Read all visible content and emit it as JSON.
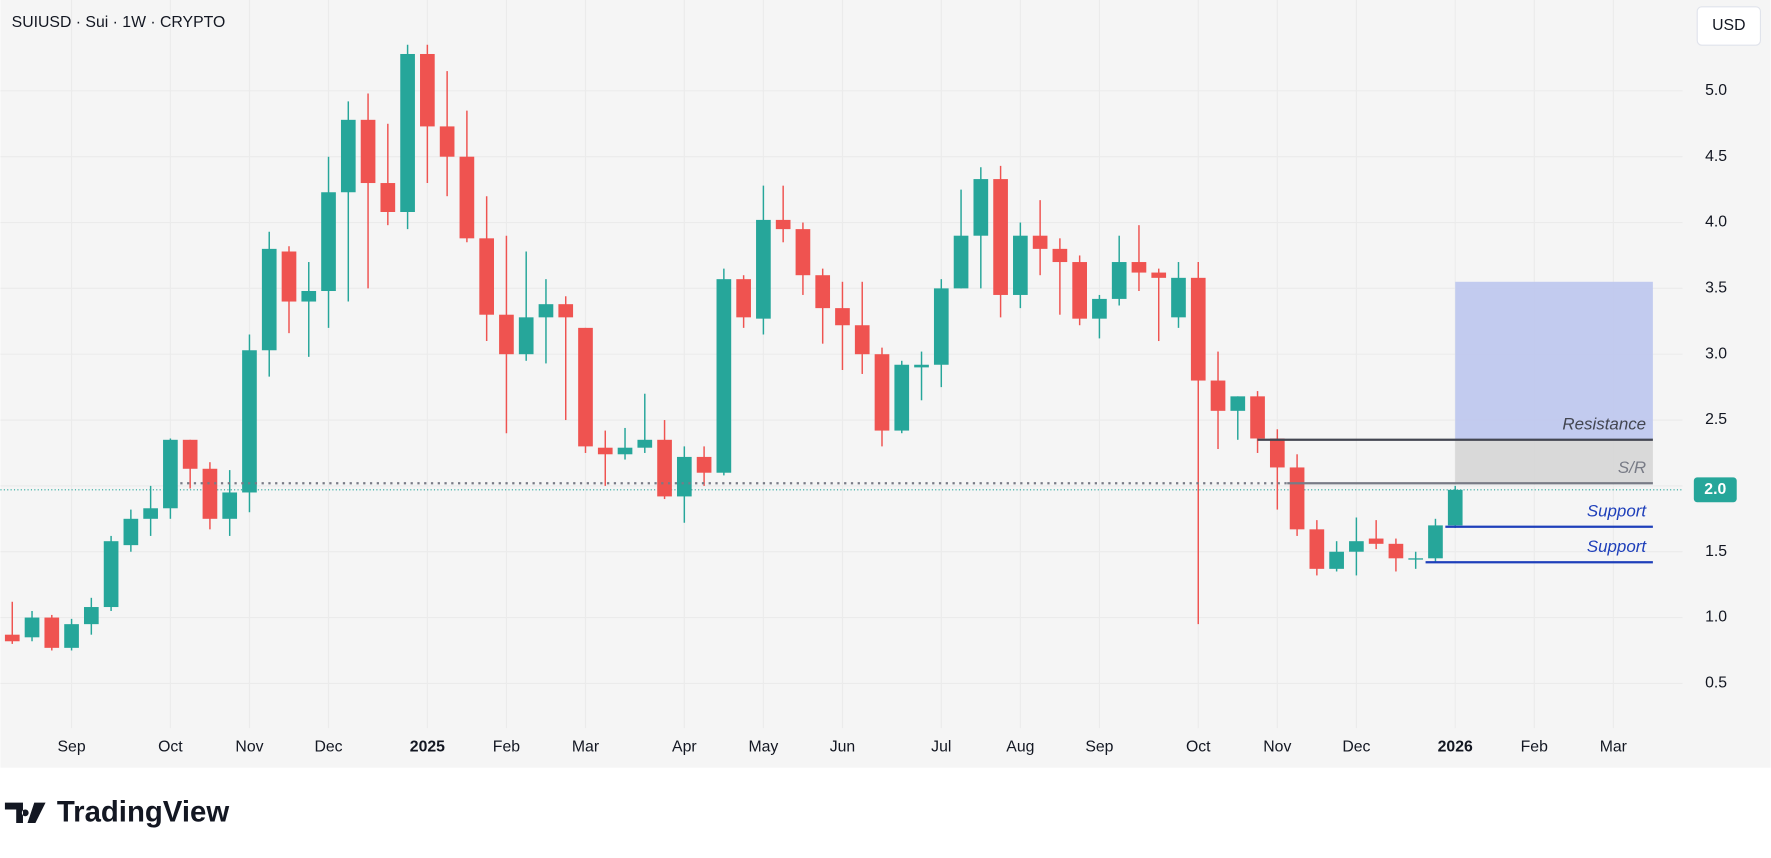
{
  "header": {
    "symbol": "SUIUSD · Sui · 1W · CRYPTO",
    "currency": "USD"
  },
  "footer": {
    "brand": "TradingView"
  },
  "chart_data": {
    "type": "candlestick",
    "up_color": "#26a69a",
    "down_color": "#ef5350",
    "open": [
      0.87,
      0.85,
      1.0,
      0.77,
      0.95,
      1.08,
      1.55,
      1.75,
      1.83,
      2.35,
      2.13,
      1.75,
      1.95,
      3.03,
      3.78,
      3.4,
      3.48,
      4.23,
      4.78,
      4.3,
      4.08,
      5.28,
      4.73,
      4.5,
      3.88,
      3.3,
      3.0,
      3.28,
      3.38,
      3.2,
      2.29,
      2.24,
      2.29,
      2.35,
      1.92,
      2.22,
      2.1,
      3.57,
      3.27,
      4.02,
      3.95,
      3.6,
      3.35,
      3.22,
      3.0,
      2.42,
      2.9,
      2.92,
      3.5,
      3.9,
      4.33,
      3.45,
      3.9,
      3.8,
      3.7,
      3.27,
      3.42,
      3.7,
      3.62,
      3.28,
      3.58,
      2.8,
      2.57,
      2.68,
      2.36,
      2.14,
      1.67,
      1.37,
      1.5,
      1.6,
      1.56,
      1.44,
      1.45,
      1.7
    ],
    "high": [
      1.12,
      1.05,
      1.02,
      0.99,
      1.15,
      1.62,
      1.82,
      2.0,
      2.36,
      2.35,
      2.18,
      2.12,
      3.15,
      3.93,
      3.82,
      3.7,
      4.5,
      4.92,
      4.98,
      4.75,
      5.35,
      5.35,
      5.15,
      4.85,
      4.2,
      3.9,
      3.78,
      3.57,
      3.44,
      3.2,
      2.42,
      2.44,
      2.7,
      2.5,
      2.3,
      2.3,
      3.65,
      3.6,
      4.28,
      4.28,
      4.0,
      3.65,
      3.55,
      3.55,
      3.05,
      2.95,
      3.02,
      3.57,
      4.25,
      4.42,
      4.43,
      4.0,
      4.17,
      3.88,
      3.75,
      3.45,
      3.9,
      3.98,
      3.65,
      3.7,
      3.7,
      3.02,
      2.68,
      2.72,
      2.43,
      2.24,
      1.74,
      1.58,
      1.76,
      1.74,
      1.6,
      1.5,
      1.75,
      2.0
    ],
    "low": [
      0.8,
      0.82,
      0.75,
      0.75,
      0.87,
      1.05,
      1.5,
      1.62,
      1.75,
      1.98,
      1.67,
      1.62,
      1.8,
      2.83,
      3.16,
      2.98,
      3.2,
      3.4,
      3.5,
      3.98,
      3.95,
      4.3,
      4.2,
      3.85,
      3.1,
      2.4,
      2.95,
      2.93,
      2.5,
      2.25,
      2.0,
      2.2,
      2.25,
      1.9,
      1.72,
      2.0,
      2.08,
      3.2,
      3.15,
      3.85,
      3.45,
      3.08,
      2.88,
      2.85,
      2.3,
      2.4,
      2.65,
      2.75,
      3.5,
      3.5,
      3.28,
      3.35,
      3.6,
      3.3,
      3.22,
      3.12,
      3.37,
      3.48,
      3.1,
      3.2,
      0.95,
      2.28,
      2.35,
      2.25,
      1.82,
      1.62,
      1.32,
      1.35,
      1.32,
      1.52,
      1.35,
      1.37,
      1.42,
      1.68
    ],
    "close": [
      0.82,
      1.0,
      0.77,
      0.95,
      1.08,
      1.58,
      1.75,
      1.83,
      2.35,
      2.13,
      1.75,
      1.95,
      3.03,
      3.8,
      3.4,
      3.48,
      4.23,
      4.78,
      4.3,
      4.08,
      5.28,
      4.73,
      4.5,
      3.88,
      3.3,
      3.0,
      3.28,
      3.38,
      3.28,
      2.3,
      2.24,
      2.29,
      2.35,
      1.92,
      2.22,
      2.1,
      3.57,
      3.28,
      4.02,
      3.95,
      3.6,
      3.35,
      3.22,
      3.0,
      2.42,
      2.92,
      2.92,
      3.5,
      3.9,
      4.33,
      3.45,
      3.9,
      3.8,
      3.7,
      3.27,
      3.42,
      3.7,
      3.62,
      3.58,
      3.58,
      2.8,
      2.57,
      2.68,
      2.36,
      2.14,
      1.67,
      1.37,
      1.5,
      1.58,
      1.56,
      1.45,
      1.45,
      1.7,
      1.97
    ],
    "xlim": [
      -0.6,
      84.5
    ],
    "xticks": [
      {
        "value": 3,
        "label": "Sep"
      },
      {
        "value": 8,
        "label": "Oct"
      },
      {
        "value": 12,
        "label": "Nov"
      },
      {
        "value": 16,
        "label": "Dec"
      },
      {
        "value": 21,
        "label": "2025",
        "bold": true
      },
      {
        "value": 25,
        "label": "Feb"
      },
      {
        "value": 29,
        "label": "Mar"
      },
      {
        "value": 34,
        "label": "Apr"
      },
      {
        "value": 38,
        "label": "May"
      },
      {
        "value": 42,
        "label": "Jun"
      },
      {
        "value": 47,
        "label": "Jul"
      },
      {
        "value": 51,
        "label": "Aug"
      },
      {
        "value": 55,
        "label": "Sep"
      },
      {
        "value": 60,
        "label": "Oct"
      },
      {
        "value": 64,
        "label": "Nov"
      },
      {
        "value": 68,
        "label": "Dec"
      },
      {
        "value": 73,
        "label": "2026",
        "bold": true
      },
      {
        "value": 77,
        "label": "Feb"
      },
      {
        "value": 81,
        "label": "Mar"
      }
    ],
    "ylim": [
      0.16,
      5.69
    ],
    "yticks": [
      {
        "value": 0.5,
        "label": "0.5"
      },
      {
        "value": 1,
        "label": "1.0"
      },
      {
        "value": 1.5,
        "label": "1.5"
      },
      {
        "value": 2,
        "label": "2.0"
      },
      {
        "value": 2.5,
        "label": "2.5"
      },
      {
        "value": 3,
        "label": "3.0"
      },
      {
        "value": 3.5,
        "label": "3.5"
      },
      {
        "value": 4,
        "label": "4.0"
      },
      {
        "value": 4.5,
        "label": "4.5"
      },
      {
        "value": 5,
        "label": "5.0"
      }
    ],
    "grid": true,
    "zones": [
      {
        "from": 2.02,
        "to": 2.35,
        "start": 73,
        "end": 83,
        "color": "#d6d6d6"
      },
      {
        "from": 2.35,
        "to": 3.55,
        "start": 73,
        "end": 83,
        "color": "#bcc6ee"
      }
    ],
    "levels": [
      {
        "value": 2.02,
        "start": 8.5,
        "end": 64.5,
        "color": "#787b86",
        "style": "dotted"
      },
      {
        "label": "S/R",
        "value": 2.02,
        "start": 64.5,
        "end": 83,
        "color": "#787b86",
        "style": "solid"
      },
      {
        "label": "Resistance",
        "value": 2.35,
        "start": 63,
        "end": 83,
        "color": "#434651",
        "style": "solid"
      },
      {
        "label": "Support",
        "value": 1.69,
        "start": 72.5,
        "end": 83,
        "color": "#1e3fba",
        "style": "solid"
      },
      {
        "label": "Support",
        "value": 1.42,
        "start": 71.5,
        "end": 83,
        "color": "#1e3fba",
        "style": "solid"
      }
    ],
    "last_price": {
      "value": 1.97,
      "label": "2.0",
      "color": "#26a69a"
    }
  }
}
